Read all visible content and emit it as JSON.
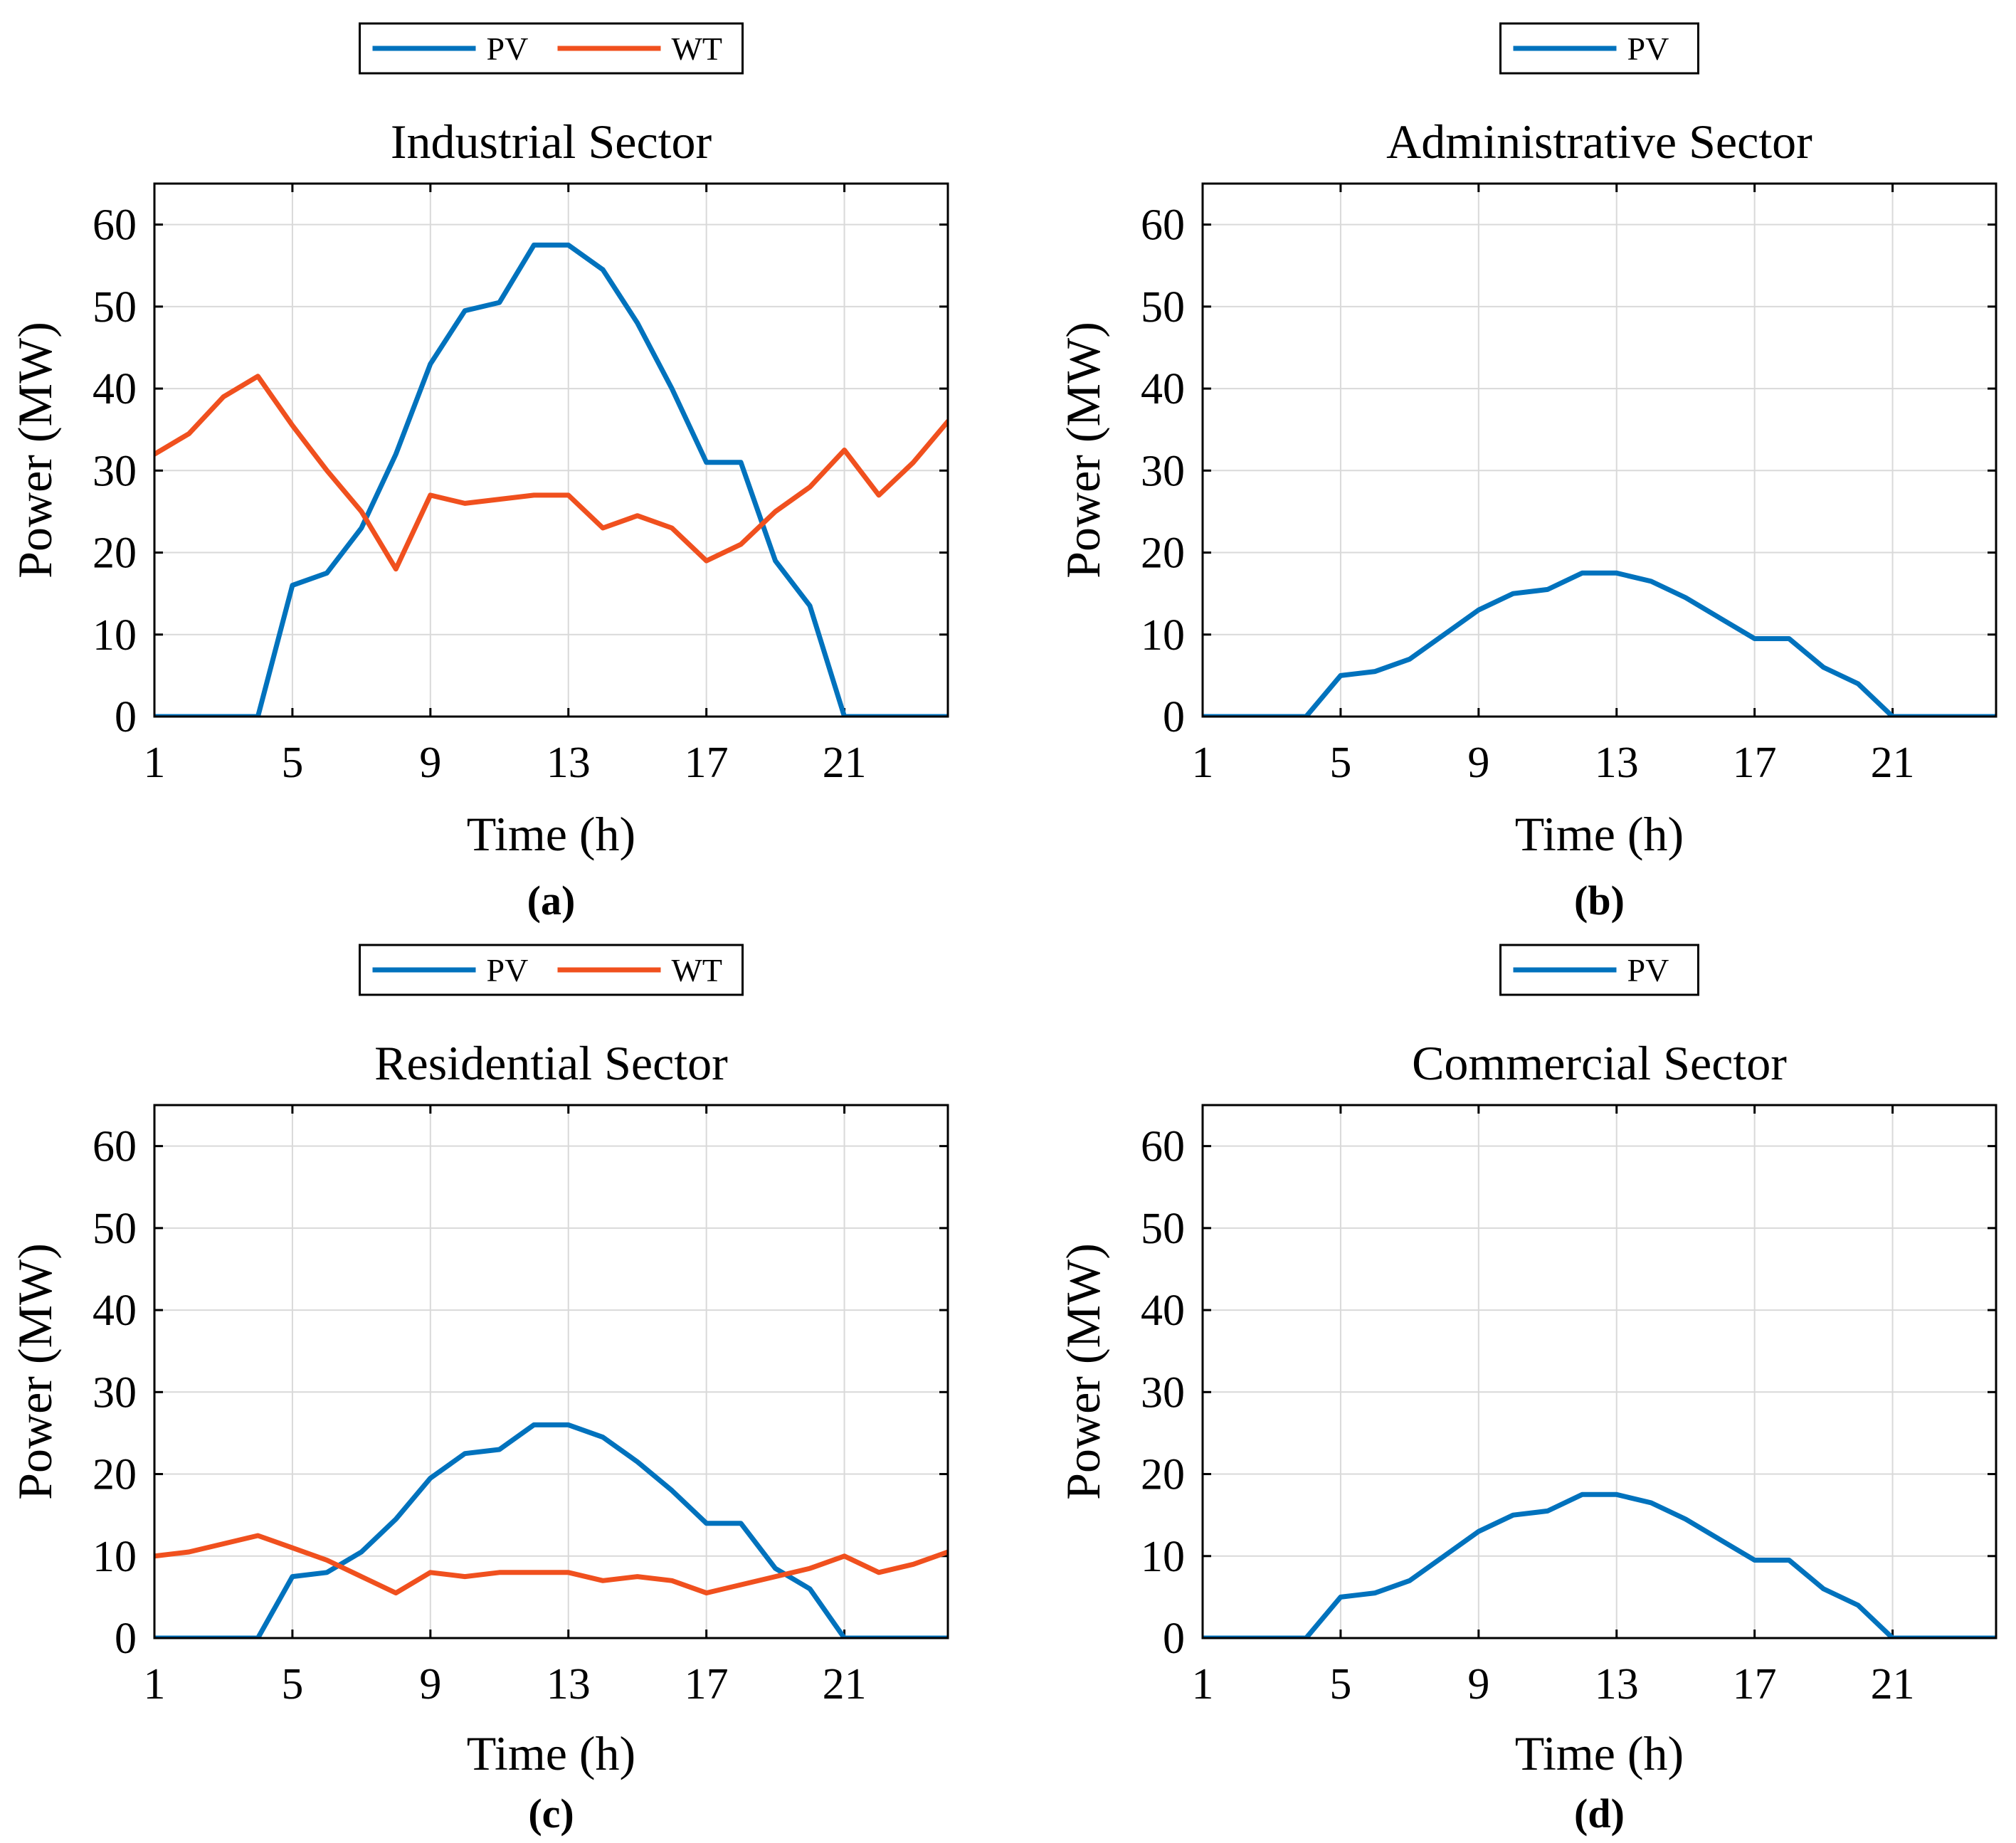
{
  "chart_data": [
    {
      "type": "line",
      "panel_label": "(a)",
      "title": "Industrial Sector",
      "xlabel": "Time (h)",
      "ylabel": "Power (MW)",
      "xlim": [
        1,
        24
      ],
      "ylim": [
        0,
        65
      ],
      "xticks": [
        1,
        5,
        9,
        13,
        17,
        21
      ],
      "yticks": [
        0,
        10,
        20,
        30,
        40,
        50,
        60
      ],
      "grid": true,
      "legend_position": "top-center-outside",
      "x": [
        1,
        2,
        3,
        4,
        5,
        6,
        7,
        8,
        9,
        10,
        11,
        12,
        13,
        14,
        15,
        16,
        17,
        18,
        19,
        20,
        21,
        22,
        23,
        24
      ],
      "series": [
        {
          "name": "PV",
          "color": "#0072BD",
          "values": [
            0,
            0,
            0,
            0,
            16,
            17.5,
            23,
            32,
            43,
            49.5,
            50.5,
            57.5,
            57.5,
            54.5,
            48,
            40,
            31,
            31,
            19,
            13.5,
            0,
            0,
            0,
            0
          ]
        },
        {
          "name": "WT",
          "color": "#F0501E",
          "values": [
            32,
            34.5,
            39,
            41.5,
            35.5,
            30,
            25,
            18,
            27,
            26,
            26.5,
            27,
            27,
            23,
            24.5,
            23,
            19,
            21,
            25,
            28,
            32.5,
            27,
            31,
            36
          ]
        }
      ]
    },
    {
      "type": "line",
      "panel_label": "(b)",
      "title": "Administrative Sector",
      "xlabel": "Time (h)",
      "ylabel": "Power (MW)",
      "xlim": [
        1,
        24
      ],
      "ylim": [
        0,
        65
      ],
      "xticks": [
        1,
        5,
        9,
        13,
        17,
        21
      ],
      "yticks": [
        0,
        10,
        20,
        30,
        40,
        50,
        60
      ],
      "grid": true,
      "legend_position": "top-center-outside",
      "x": [
        1,
        2,
        3,
        4,
        5,
        6,
        7,
        8,
        9,
        10,
        11,
        12,
        13,
        14,
        15,
        16,
        17,
        18,
        19,
        20,
        21,
        22,
        23,
        24
      ],
      "series": [
        {
          "name": "PV",
          "color": "#0072BD",
          "values": [
            0,
            0,
            0,
            0,
            5,
            5.5,
            7,
            10,
            13,
            15,
            15.5,
            17.5,
            17.5,
            16.5,
            14.5,
            12,
            9.5,
            9.5,
            6,
            4,
            0,
            0,
            0,
            0
          ]
        }
      ]
    },
    {
      "type": "line",
      "panel_label": "(c)",
      "title": "Residential Sector",
      "xlabel": "Time (h)",
      "ylabel": "Power (MW)",
      "xlim": [
        1,
        24
      ],
      "ylim": [
        0,
        65
      ],
      "xticks": [
        1,
        5,
        9,
        13,
        17,
        21
      ],
      "yticks": [
        0,
        10,
        20,
        30,
        40,
        50,
        60
      ],
      "grid": true,
      "legend_position": "top-center-outside",
      "x": [
        1,
        2,
        3,
        4,
        5,
        6,
        7,
        8,
        9,
        10,
        11,
        12,
        13,
        14,
        15,
        16,
        17,
        18,
        19,
        20,
        21,
        22,
        23,
        24
      ],
      "series": [
        {
          "name": "PV",
          "color": "#0072BD",
          "values": [
            0,
            0,
            0,
            0,
            7.5,
            8,
            10.5,
            14.5,
            19.5,
            22.5,
            23,
            26,
            26,
            24.5,
            21.5,
            18,
            14,
            14,
            8.5,
            6,
            0,
            0,
            0,
            0
          ]
        },
        {
          "name": "WT",
          "color": "#F0501E",
          "values": [
            10,
            10.5,
            11.5,
            12.5,
            11,
            9.5,
            7.5,
            5.5,
            8,
            7.5,
            8,
            8,
            8,
            7,
            7.5,
            7,
            5.5,
            6.5,
            7.5,
            8.5,
            10,
            8,
            9,
            10.5
          ]
        }
      ]
    },
    {
      "type": "line",
      "panel_label": "(d)",
      "title": "Commercial Sector",
      "xlabel": "Time (h)",
      "ylabel": "Power (MW)",
      "xlim": [
        1,
        24
      ],
      "ylim": [
        0,
        65
      ],
      "xticks": [
        1,
        5,
        9,
        13,
        17,
        21
      ],
      "yticks": [
        0,
        10,
        20,
        30,
        40,
        50,
        60
      ],
      "grid": true,
      "legend_position": "top-center-outside",
      "x": [
        1,
        2,
        3,
        4,
        5,
        6,
        7,
        8,
        9,
        10,
        11,
        12,
        13,
        14,
        15,
        16,
        17,
        18,
        19,
        20,
        21,
        22,
        23,
        24
      ],
      "series": [
        {
          "name": "PV",
          "color": "#0072BD",
          "values": [
            0,
            0,
            0,
            0,
            5,
            5.5,
            7,
            10,
            13,
            15,
            15.5,
            17.5,
            17.5,
            16.5,
            14.5,
            12,
            9.5,
            9.5,
            6,
            4,
            0,
            0,
            0,
            0
          ]
        }
      ]
    }
  ]
}
